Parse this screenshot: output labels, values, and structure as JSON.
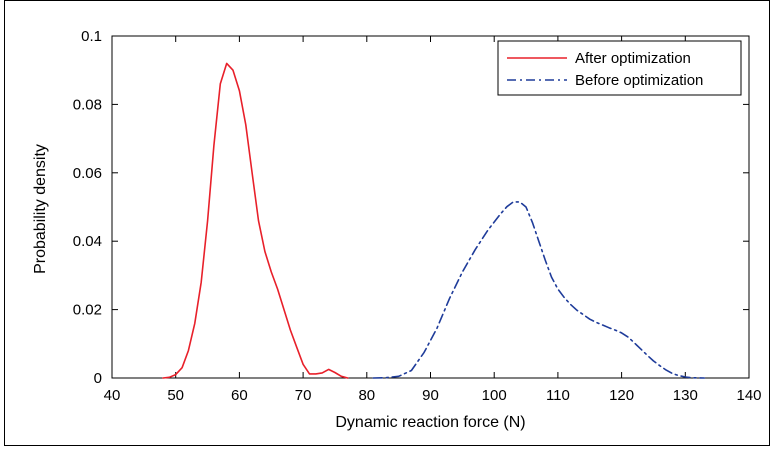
{
  "chart_data": {
    "type": "line",
    "title": "",
    "xlabel": "Dynamic reaction force (N)",
    "ylabel": "Probability density",
    "xlim": [
      40,
      140
    ],
    "ylim": [
      0,
      0.1
    ],
    "x_ticks": [
      "40",
      "50",
      "60",
      "70",
      "80",
      "90",
      "100",
      "110",
      "120",
      "130",
      "140"
    ],
    "y_ticks": [
      "0",
      "0.02",
      "0.04",
      "0.06",
      "0.08",
      "0.1"
    ],
    "grid": false,
    "legend_position": "top-right",
    "series": [
      {
        "name": "After optimization",
        "color": "#e8202a",
        "style": "solid",
        "x": [
          48,
          49,
          50,
          51,
          52,
          53,
          54,
          55,
          56,
          57,
          58,
          59,
          60,
          61,
          62,
          63,
          64,
          65,
          66,
          67,
          68,
          69,
          70,
          71,
          72,
          73,
          74,
          75,
          76,
          77
        ],
        "y": [
          0,
          0.0002,
          0.001,
          0.003,
          0.008,
          0.016,
          0.028,
          0.046,
          0.068,
          0.086,
          0.092,
          0.09,
          0.084,
          0.074,
          0.06,
          0.046,
          0.037,
          0.031,
          0.026,
          0.02,
          0.014,
          0.009,
          0.004,
          0.0012,
          0.0012,
          0.0015,
          0.0025,
          0.0016,
          0.0005,
          0
        ]
      },
      {
        "name": "Before optimization",
        "color": "#1f3c9a",
        "style": "dashdot",
        "x": [
          81,
          83,
          85,
          87,
          89,
          91,
          93,
          95,
          97,
          99,
          101,
          102,
          103,
          104,
          105,
          106,
          107,
          108,
          109,
          110,
          111,
          112,
          113,
          114,
          115,
          116,
          117,
          118,
          119,
          120,
          121,
          122,
          123,
          124,
          125,
          126,
          127,
          128,
          129,
          130,
          131,
          132,
          133
        ],
        "y": [
          0,
          0.0001,
          0.0005,
          0.0022,
          0.0075,
          0.0145,
          0.0233,
          0.031,
          0.0375,
          0.0432,
          0.048,
          0.0501,
          0.0515,
          0.0515,
          0.05,
          0.0455,
          0.04,
          0.0345,
          0.0295,
          0.026,
          0.0235,
          0.0215,
          0.0198,
          0.0185,
          0.0172,
          0.0163,
          0.0155,
          0.0147,
          0.014,
          0.0132,
          0.012,
          0.0103,
          0.0085,
          0.0067,
          0.005,
          0.0036,
          0.0023,
          0.0013,
          0.0007,
          0.0003,
          0.0001,
          3e-05,
          0
        ]
      }
    ]
  }
}
